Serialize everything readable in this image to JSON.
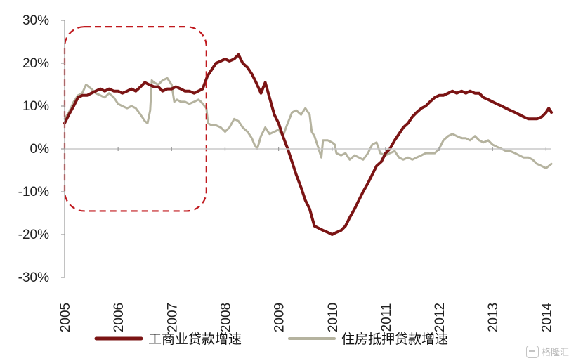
{
  "chart_data": {
    "type": "line",
    "title": "",
    "xlabel": "",
    "ylabel": "",
    "x_ticks": [
      "2005",
      "2006",
      "2007",
      "2008",
      "2009",
      "2010",
      "2011",
      "2012",
      "2013",
      "2014"
    ],
    "y_ticks": [
      "30%",
      "20%",
      "10%",
      "0%",
      "-10%",
      "-20%",
      "-30%"
    ],
    "xlim": [
      2005.0,
      2014.1
    ],
    "ylim": [
      -30,
      30
    ],
    "grid": false,
    "legend_position": "bottom",
    "highlight_box": {
      "x_start": 2005.0,
      "x_end": 2007.65,
      "y_top": 28.5,
      "y_bottom": -14.5,
      "style": "dashed",
      "color": "#c0191e"
    },
    "series": [
      {
        "name": "工商业贷款增速",
        "color": "#7b1414",
        "points": [
          [
            2005.0,
            6
          ],
          [
            2005.08,
            8
          ],
          [
            2005.17,
            10
          ],
          [
            2005.25,
            12
          ],
          [
            2005.33,
            12.5
          ],
          [
            2005.42,
            12.5
          ],
          [
            2005.5,
            13
          ],
          [
            2005.58,
            13.5
          ],
          [
            2005.67,
            14
          ],
          [
            2005.75,
            13.5
          ],
          [
            2005.83,
            14
          ],
          [
            2005.92,
            13.5
          ],
          [
            2006.0,
            13.5
          ],
          [
            2006.08,
            13
          ],
          [
            2006.17,
            13.5
          ],
          [
            2006.25,
            14
          ],
          [
            2006.33,
            13.5
          ],
          [
            2006.42,
            14.5
          ],
          [
            2006.5,
            15.5
          ],
          [
            2006.58,
            15
          ],
          [
            2006.67,
            14.5
          ],
          [
            2006.75,
            14.5
          ],
          [
            2006.83,
            13.5
          ],
          [
            2006.92,
            14
          ],
          [
            2007.0,
            14
          ],
          [
            2007.08,
            14.5
          ],
          [
            2007.17,
            14
          ],
          [
            2007.25,
            13.5
          ],
          [
            2007.33,
            13.5
          ],
          [
            2007.42,
            13
          ],
          [
            2007.5,
            13.5
          ],
          [
            2007.58,
            14
          ],
          [
            2007.67,
            17
          ],
          [
            2007.75,
            18.5
          ],
          [
            2007.83,
            20
          ],
          [
            2007.92,
            20.5
          ],
          [
            2008.0,
            21
          ],
          [
            2008.08,
            20.5
          ],
          [
            2008.17,
            21
          ],
          [
            2008.25,
            22
          ],
          [
            2008.33,
            20
          ],
          [
            2008.42,
            19
          ],
          [
            2008.5,
            17.5
          ],
          [
            2008.58,
            15.5
          ],
          [
            2008.67,
            13
          ],
          [
            2008.75,
            15.5
          ],
          [
            2008.83,
            12
          ],
          [
            2008.92,
            8
          ],
          [
            2009.0,
            6
          ],
          [
            2009.08,
            3
          ],
          [
            2009.17,
            0
          ],
          [
            2009.25,
            -3
          ],
          [
            2009.33,
            -6
          ],
          [
            2009.42,
            -9
          ],
          [
            2009.5,
            -12
          ],
          [
            2009.58,
            -14
          ],
          [
            2009.67,
            -18
          ],
          [
            2009.75,
            -18.5
          ],
          [
            2009.83,
            -19
          ],
          [
            2009.92,
            -19.5
          ],
          [
            2010.0,
            -20
          ],
          [
            2010.08,
            -19.5
          ],
          [
            2010.17,
            -19
          ],
          [
            2010.25,
            -18
          ],
          [
            2010.33,
            -16
          ],
          [
            2010.42,
            -14
          ],
          [
            2010.5,
            -12
          ],
          [
            2010.58,
            -10
          ],
          [
            2010.67,
            -8
          ],
          [
            2010.75,
            -6
          ],
          [
            2010.83,
            -4
          ],
          [
            2010.92,
            -3
          ],
          [
            2011.0,
            -1
          ],
          [
            2011.08,
            0
          ],
          [
            2011.17,
            2
          ],
          [
            2011.25,
            3.5
          ],
          [
            2011.33,
            5
          ],
          [
            2011.42,
            6
          ],
          [
            2011.5,
            7.5
          ],
          [
            2011.58,
            8.5
          ],
          [
            2011.67,
            9.5
          ],
          [
            2011.75,
            10
          ],
          [
            2011.83,
            11
          ],
          [
            2011.92,
            12
          ],
          [
            2012.0,
            12.5
          ],
          [
            2012.08,
            12.5
          ],
          [
            2012.17,
            13
          ],
          [
            2012.25,
            13.5
          ],
          [
            2012.33,
            13
          ],
          [
            2012.42,
            13.5
          ],
          [
            2012.5,
            13
          ],
          [
            2012.58,
            13.5
          ],
          [
            2012.67,
            13
          ],
          [
            2012.75,
            13
          ],
          [
            2012.83,
            12
          ],
          [
            2012.92,
            11.5
          ],
          [
            2013.0,
            11
          ],
          [
            2013.08,
            10.5
          ],
          [
            2013.17,
            10
          ],
          [
            2013.25,
            9.5
          ],
          [
            2013.33,
            9
          ],
          [
            2013.42,
            8.5
          ],
          [
            2013.5,
            8
          ],
          [
            2013.58,
            7.5
          ],
          [
            2013.67,
            7
          ],
          [
            2013.75,
            7
          ],
          [
            2013.83,
            7
          ],
          [
            2013.92,
            7.5
          ],
          [
            2014.0,
            8.5
          ],
          [
            2014.05,
            9.5
          ],
          [
            2014.1,
            8.5
          ]
        ]
      },
      {
        "name": "住房抵押贷款增速",
        "color": "#b5b39f",
        "points": [
          [
            2005.0,
            7
          ],
          [
            2005.08,
            8.5
          ],
          [
            2005.17,
            11
          ],
          [
            2005.25,
            12.5
          ],
          [
            2005.33,
            13
          ],
          [
            2005.4,
            15
          ],
          [
            2005.5,
            14
          ],
          [
            2005.58,
            13
          ],
          [
            2005.67,
            12.5
          ],
          [
            2005.75,
            12
          ],
          [
            2005.83,
            13
          ],
          [
            2005.92,
            12
          ],
          [
            2006.0,
            10.5
          ],
          [
            2006.08,
            10
          ],
          [
            2006.17,
            9.5
          ],
          [
            2006.25,
            10
          ],
          [
            2006.33,
            9.5
          ],
          [
            2006.42,
            8
          ],
          [
            2006.5,
            6.5
          ],
          [
            2006.55,
            6
          ],
          [
            2006.6,
            9
          ],
          [
            2006.63,
            16
          ],
          [
            2006.67,
            15.5
          ],
          [
            2006.75,
            15
          ],
          [
            2006.83,
            16
          ],
          [
            2006.92,
            16.5
          ],
          [
            2007.0,
            15
          ],
          [
            2007.05,
            11
          ],
          [
            2007.1,
            11.5
          ],
          [
            2007.17,
            11
          ],
          [
            2007.25,
            11
          ],
          [
            2007.33,
            10.5
          ],
          [
            2007.42,
            11
          ],
          [
            2007.5,
            11.5
          ],
          [
            2007.55,
            11
          ],
          [
            2007.65,
            9.5
          ],
          [
            2007.68,
            6
          ],
          [
            2007.75,
            5.5
          ],
          [
            2007.83,
            5.5
          ],
          [
            2007.92,
            5
          ],
          [
            2008.0,
            4
          ],
          [
            2008.08,
            5
          ],
          [
            2008.17,
            7
          ],
          [
            2008.25,
            6.5
          ],
          [
            2008.33,
            5
          ],
          [
            2008.42,
            4
          ],
          [
            2008.5,
            2.5
          ],
          [
            2008.55,
            1
          ],
          [
            2008.6,
            0
          ],
          [
            2008.67,
            3
          ],
          [
            2008.75,
            5
          ],
          [
            2008.83,
            3.5
          ],
          [
            2008.92,
            4
          ],
          [
            2009.0,
            4.5
          ],
          [
            2009.08,
            3
          ],
          [
            2009.17,
            6
          ],
          [
            2009.25,
            8.5
          ],
          [
            2009.33,
            9
          ],
          [
            2009.42,
            8
          ],
          [
            2009.5,
            9.5
          ],
          [
            2009.58,
            8
          ],
          [
            2009.62,
            4
          ],
          [
            2009.67,
            3
          ],
          [
            2009.75,
            0
          ],
          [
            2009.8,
            -2
          ],
          [
            2009.83,
            2
          ],
          [
            2009.92,
            2
          ],
          [
            2010.0,
            1.5
          ],
          [
            2010.05,
            1
          ],
          [
            2010.08,
            -1
          ],
          [
            2010.17,
            -1.5
          ],
          [
            2010.25,
            -1
          ],
          [
            2010.33,
            -2.5
          ],
          [
            2010.42,
            -1.5
          ],
          [
            2010.5,
            -2
          ],
          [
            2010.58,
            -2.5
          ],
          [
            2010.67,
            -1
          ],
          [
            2010.75,
            1
          ],
          [
            2010.83,
            1.5
          ],
          [
            2010.9,
            -1
          ],
          [
            2011.0,
            -1.5
          ],
          [
            2011.08,
            -1
          ],
          [
            2011.17,
            -0.5
          ],
          [
            2011.25,
            -2
          ],
          [
            2011.33,
            -2.5
          ],
          [
            2011.42,
            -2
          ],
          [
            2011.5,
            -2.5
          ],
          [
            2011.58,
            -2
          ],
          [
            2011.67,
            -1.5
          ],
          [
            2011.75,
            -1
          ],
          [
            2011.83,
            -1
          ],
          [
            2011.92,
            -1
          ],
          [
            2012.0,
            0
          ],
          [
            2012.08,
            2
          ],
          [
            2012.17,
            3
          ],
          [
            2012.25,
            3.5
          ],
          [
            2012.33,
            3
          ],
          [
            2012.42,
            2.5
          ],
          [
            2012.5,
            2.5
          ],
          [
            2012.58,
            2
          ],
          [
            2012.67,
            3
          ],
          [
            2012.75,
            2
          ],
          [
            2012.83,
            1.5
          ],
          [
            2012.92,
            2
          ],
          [
            2013.0,
            1
          ],
          [
            2013.08,
            0.5
          ],
          [
            2013.17,
            0
          ],
          [
            2013.25,
            -0.5
          ],
          [
            2013.33,
            -0.5
          ],
          [
            2013.42,
            -1
          ],
          [
            2013.5,
            -1.5
          ],
          [
            2013.58,
            -2
          ],
          [
            2013.67,
            -2
          ],
          [
            2013.75,
            -2.5
          ],
          [
            2013.83,
            -3.5
          ],
          [
            2013.92,
            -4
          ],
          [
            2014.0,
            -4.5
          ],
          [
            2014.05,
            -4
          ],
          [
            2014.1,
            -3.5
          ]
        ]
      }
    ]
  },
  "watermark": {
    "text": "格隆汇"
  }
}
